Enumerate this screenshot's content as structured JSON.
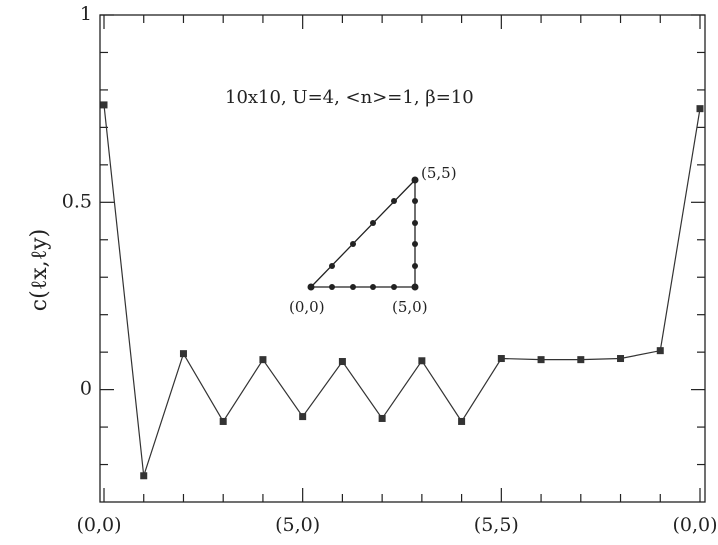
{
  "chart_data": {
    "type": "line",
    "ylabel": "c(ℓx,ℓy)",
    "annotation": "10x10, U=4, <n>=1, β=10",
    "categories": [
      "(0,0)",
      null,
      null,
      null,
      null,
      "(5,0)",
      null,
      null,
      null,
      null,
      "(5,5)",
      null,
      null,
      null,
      null,
      "(0,0)"
    ],
    "values": [
      0.76,
      -0.23,
      0.096,
      -0.085,
      0.08,
      -0.072,
      0.075,
      -0.077,
      0.077,
      -0.085,
      0.083,
      0.08,
      0.08,
      0.083,
      0.104,
      0.75
    ],
    "color": "#333333",
    "ylim": [
      -0.3,
      1
    ],
    "yticks": [
      0,
      0.5,
      1
    ],
    "yminorticks": [
      -0.2,
      -0.1,
      0.1,
      0.2,
      0.3,
      0.4,
      0.6,
      0.7,
      0.8,
      0.9
    ],
    "inset": {
      "labels": [
        "(0,0)",
        "(5,0)",
        "(5,5)"
      ]
    }
  }
}
